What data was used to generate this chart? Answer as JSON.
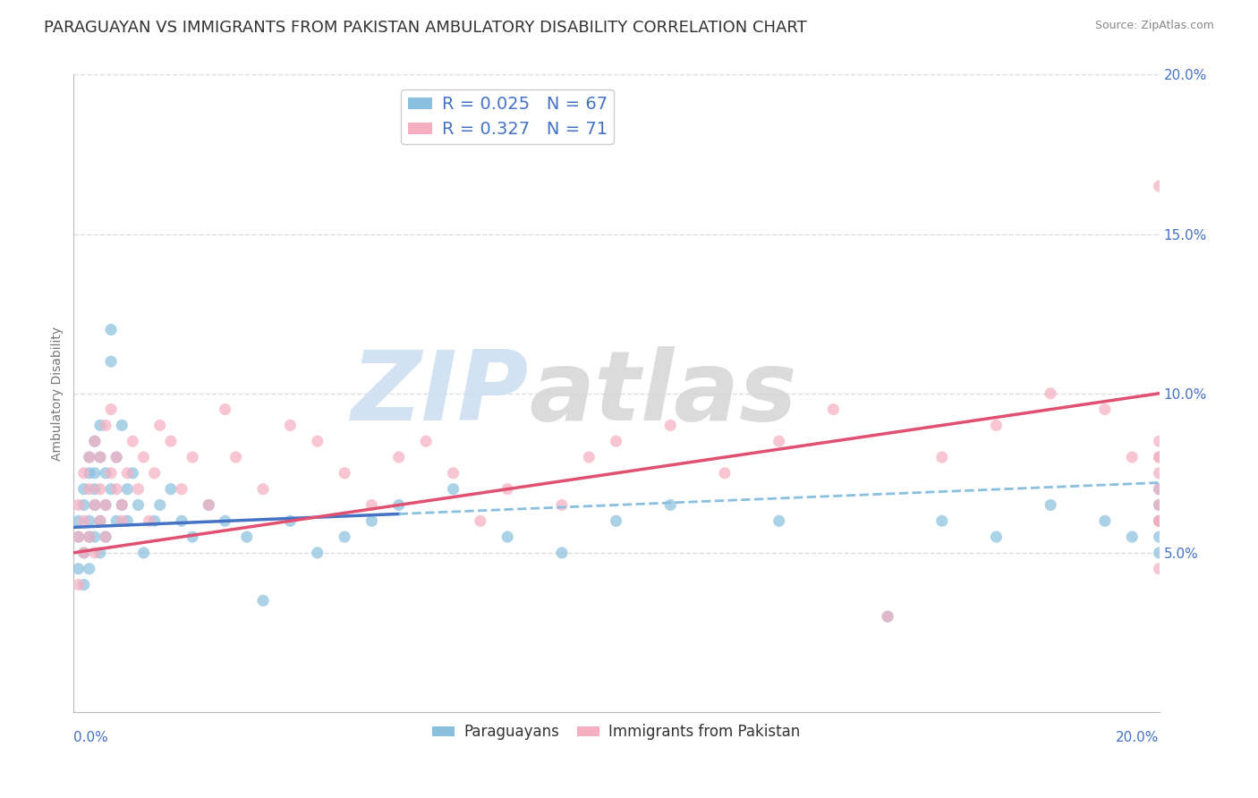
{
  "title": "PARAGUAYAN VS IMMIGRANTS FROM PAKISTAN AMBULATORY DISABILITY CORRELATION CHART",
  "source": "Source: ZipAtlas.com",
  "ylabel": "Ambulatory Disability",
  "legend_label1": "Paraguayans",
  "legend_label2": "Immigrants from Pakistan",
  "r1": 0.025,
  "n1": 67,
  "r2": 0.327,
  "n2": 71,
  "color1": "#89bfdf",
  "color2": "#f5afc0",
  "trendline1_color": "#4472c4",
  "trendline2_color": "#e05070",
  "watermark_zip": "ZIP",
  "watermark_atlas": "atlas",
  "xlim": [
    0.0,
    0.2
  ],
  "ylim": [
    0.0,
    0.2
  ],
  "yticks": [
    0.05,
    0.1,
    0.15,
    0.2
  ],
  "ytick_labels": [
    "5.0%",
    "10.0%",
    "15.0%",
    "20.0%"
  ],
  "blue_scatter_x": [
    0.001,
    0.001,
    0.001,
    0.002,
    0.002,
    0.002,
    0.002,
    0.003,
    0.003,
    0.003,
    0.003,
    0.003,
    0.004,
    0.004,
    0.004,
    0.004,
    0.004,
    0.005,
    0.005,
    0.005,
    0.005,
    0.006,
    0.006,
    0.006,
    0.007,
    0.007,
    0.007,
    0.008,
    0.008,
    0.009,
    0.009,
    0.01,
    0.01,
    0.011,
    0.012,
    0.013,
    0.015,
    0.016,
    0.018,
    0.02,
    0.022,
    0.025,
    0.028,
    0.032,
    0.035,
    0.04,
    0.045,
    0.05,
    0.055,
    0.06,
    0.07,
    0.08,
    0.09,
    0.1,
    0.11,
    0.13,
    0.15,
    0.16,
    0.17,
    0.18,
    0.19,
    0.195,
    0.2,
    0.2,
    0.2,
    0.2,
    0.2
  ],
  "blue_scatter_y": [
    0.055,
    0.06,
    0.045,
    0.07,
    0.05,
    0.065,
    0.04,
    0.06,
    0.075,
    0.055,
    0.08,
    0.045,
    0.065,
    0.075,
    0.055,
    0.07,
    0.085,
    0.06,
    0.08,
    0.05,
    0.09,
    0.065,
    0.075,
    0.055,
    0.12,
    0.11,
    0.07,
    0.08,
    0.06,
    0.065,
    0.09,
    0.07,
    0.06,
    0.075,
    0.065,
    0.05,
    0.06,
    0.065,
    0.07,
    0.06,
    0.055,
    0.065,
    0.06,
    0.055,
    0.035,
    0.06,
    0.05,
    0.055,
    0.06,
    0.065,
    0.07,
    0.055,
    0.05,
    0.06,
    0.065,
    0.06,
    0.03,
    0.06,
    0.055,
    0.065,
    0.06,
    0.055,
    0.07,
    0.065,
    0.055,
    0.06,
    0.05
  ],
  "pink_scatter_x": [
    0.001,
    0.001,
    0.001,
    0.002,
    0.002,
    0.002,
    0.003,
    0.003,
    0.003,
    0.004,
    0.004,
    0.004,
    0.005,
    0.005,
    0.005,
    0.006,
    0.006,
    0.006,
    0.007,
    0.007,
    0.008,
    0.008,
    0.009,
    0.009,
    0.01,
    0.011,
    0.012,
    0.013,
    0.014,
    0.015,
    0.016,
    0.018,
    0.02,
    0.022,
    0.025,
    0.028,
    0.03,
    0.035,
    0.04,
    0.045,
    0.05,
    0.055,
    0.06,
    0.065,
    0.07,
    0.075,
    0.08,
    0.09,
    0.095,
    0.1,
    0.11,
    0.12,
    0.13,
    0.14,
    0.15,
    0.16,
    0.17,
    0.18,
    0.19,
    0.195,
    0.2,
    0.2,
    0.2,
    0.2,
    0.2,
    0.2,
    0.2,
    0.2,
    0.2,
    0.2,
    0.2
  ],
  "pink_scatter_y": [
    0.055,
    0.04,
    0.065,
    0.06,
    0.075,
    0.05,
    0.07,
    0.055,
    0.08,
    0.065,
    0.085,
    0.05,
    0.07,
    0.06,
    0.08,
    0.065,
    0.09,
    0.055,
    0.075,
    0.095,
    0.07,
    0.08,
    0.065,
    0.06,
    0.075,
    0.085,
    0.07,
    0.08,
    0.06,
    0.075,
    0.09,
    0.085,
    0.07,
    0.08,
    0.065,
    0.095,
    0.08,
    0.07,
    0.09,
    0.085,
    0.075,
    0.065,
    0.08,
    0.085,
    0.075,
    0.06,
    0.07,
    0.065,
    0.08,
    0.085,
    0.09,
    0.075,
    0.085,
    0.095,
    0.03,
    0.08,
    0.09,
    0.1,
    0.095,
    0.08,
    0.165,
    0.08,
    0.06,
    0.045,
    0.06,
    0.065,
    0.075,
    0.085,
    0.06,
    0.07,
    0.08
  ],
  "background_color": "#ffffff",
  "grid_color": "#dddddd",
  "title_fontsize": 13,
  "axis_label_fontsize": 10,
  "tick_fontsize": 11,
  "tick_color": "#4472c4",
  "trendline1_start_y": 0.058,
  "trendline1_end_y": 0.072,
  "trendline2_start_y": 0.05,
  "trendline2_end_y": 0.1
}
